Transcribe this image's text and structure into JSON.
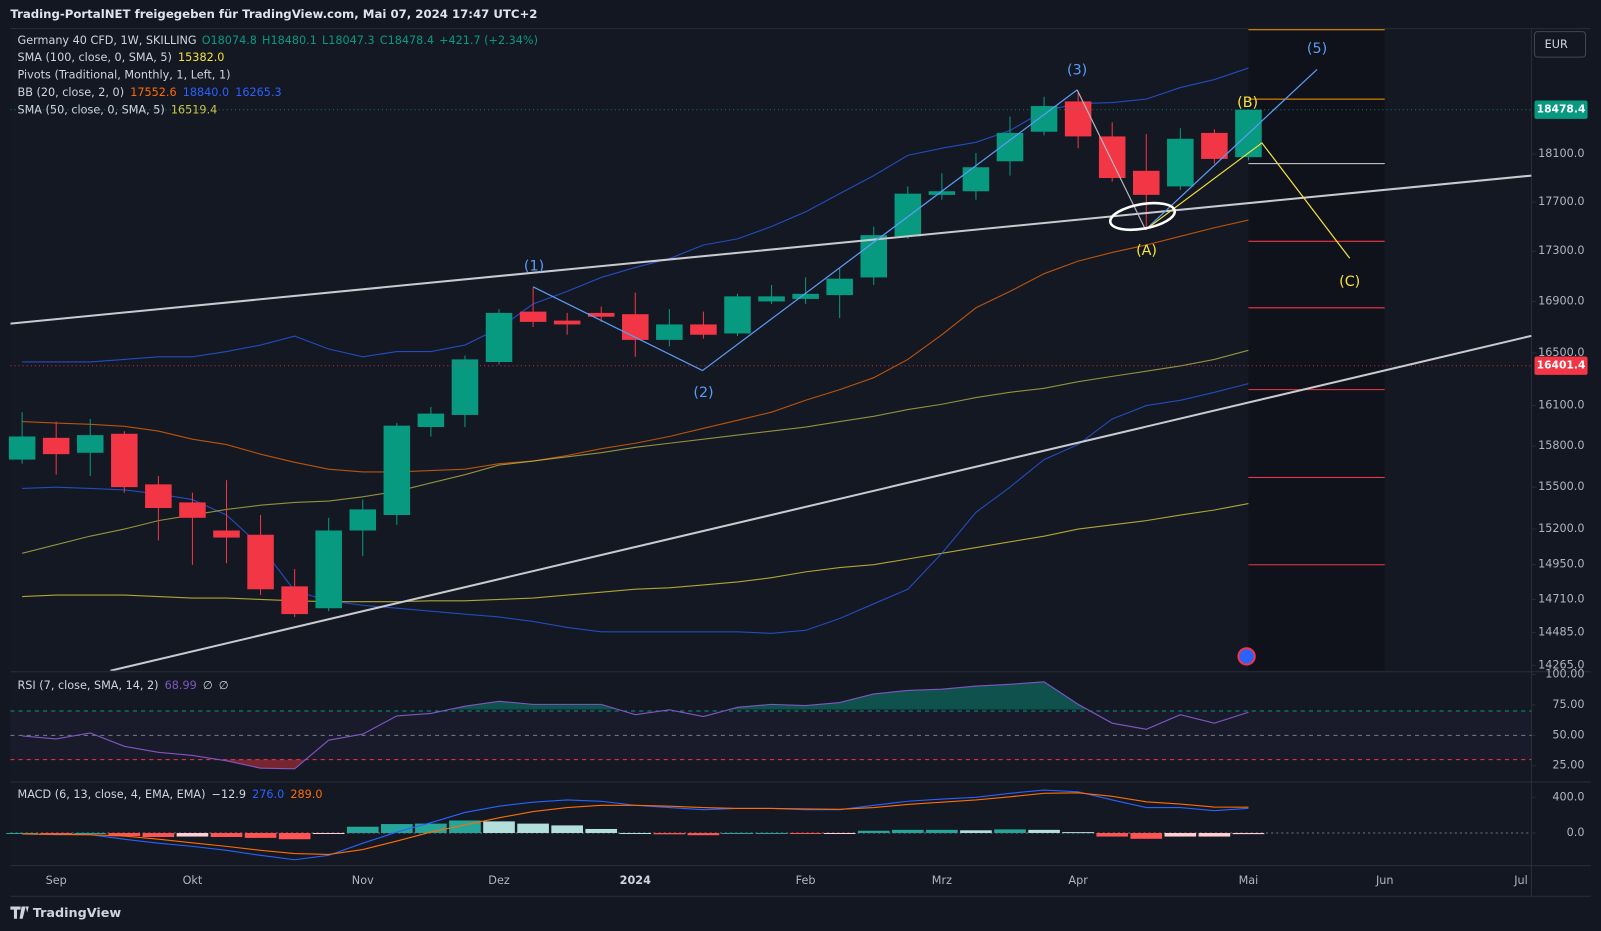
{
  "header": {
    "title": "Trading-PortalNET freigegeben für TradingView.com, Mai 07, 2024 17:47 UTC+2"
  },
  "toolbar": {
    "currency": "EUR"
  },
  "footer": {
    "brand": "TradingView"
  },
  "chart_data": [
    {
      "type": "candlestick",
      "title": "Germany 40 CFD, 1W, SKILLING",
      "legend_values": [
        "O18074.8",
        "H18480.1",
        "L18047.3",
        "C18478.4",
        "+421.7 (+2.34%)"
      ],
      "categories": [
        null,
        "Sep",
        null,
        null,
        null,
        "Okt",
        null,
        null,
        null,
        null,
        "Nov",
        null,
        null,
        null,
        "Dez",
        null,
        null,
        null,
        "2024",
        null,
        null,
        null,
        null,
        "Feb",
        null,
        null,
        null,
        "Mrz",
        null,
        null,
        null,
        "Apr",
        null,
        null,
        null,
        null,
        "Mai",
        null,
        null,
        null,
        "Jun",
        null,
        null,
        null,
        "Jul"
      ],
      "open": [
        15700,
        15860,
        15750,
        15890,
        15520,
        15390,
        15190,
        15160,
        14800,
        14650,
        15190,
        15300,
        15940,
        16030,
        16430,
        16820,
        16750,
        16810,
        16800,
        16600,
        16720,
        16650,
        16900,
        16920,
        16950,
        17090,
        17420,
        17760,
        17790,
        18040,
        18290,
        18550,
        18250,
        17960,
        17830,
        18280,
        18074.8,
        null,
        null,
        null,
        null,
        null,
        null,
        null,
        null
      ],
      "high": [
        16050,
        15980,
        16000,
        15910,
        15580,
        15460,
        15550,
        15300,
        14920,
        15280,
        15410,
        15970,
        16090,
        16480,
        16840,
        17010,
        16810,
        16860,
        16970,
        16840,
        16820,
        16960,
        17030,
        17090,
        17170,
        17500,
        17830,
        17940,
        18110,
        18420,
        18590,
        18630,
        18370,
        18270,
        18320,
        18310,
        18480.1,
        null,
        null,
        null,
        null,
        null,
        null,
        null,
        null
      ],
      "low": [
        15670,
        15590,
        15580,
        15460,
        15120,
        14950,
        14960,
        14740,
        14590,
        14630,
        15010,
        15230,
        15870,
        15940,
        16410,
        16700,
        16640,
        16740,
        16470,
        16550,
        16610,
        16630,
        16880,
        16880,
        16770,
        17030,
        17400,
        17720,
        17720,
        17920,
        18260,
        18150,
        17870,
        17480,
        17800,
        18020,
        18047.3,
        null,
        null,
        null,
        null,
        null,
        null,
        null,
        null
      ],
      "close": [
        15870,
        15740,
        15880,
        15500,
        15350,
        15280,
        15140,
        14780,
        14610,
        15190,
        15340,
        15950,
        16040,
        16450,
        16810,
        16740,
        16720,
        16780,
        16600,
        16720,
        16640,
        16940,
        16940,
        16960,
        17080,
        17430,
        17770,
        17790,
        17990,
        18280,
        18510,
        18250,
        17900,
        17760,
        18230,
        18060,
        18478.4,
        null,
        null,
        null,
        null,
        null,
        null,
        null,
        null
      ],
      "up_color": "#089981",
      "down_color": "#f23645",
      "log_scale": true,
      "ylim": [
        14230,
        19190
      ],
      "yticks": [
        {
          "value": 18100,
          "label": "18100.0"
        },
        {
          "value": 17700,
          "label": "17700.0"
        },
        {
          "value": 17300,
          "label": "17300.0"
        },
        {
          "value": 16900,
          "label": "16900.0"
        },
        {
          "value": 16500,
          "label": "16500.0"
        },
        {
          "value": 16100,
          "label": "16100.0"
        },
        {
          "value": 15800,
          "label": "15800.0"
        },
        {
          "value": 15500,
          "label": "15500.0"
        },
        {
          "value": 15200,
          "label": "15200.0"
        },
        {
          "value": 14950,
          "label": "14950.0"
        },
        {
          "value": 14710,
          "label": "14710.0"
        },
        {
          "value": 14485,
          "label": "14485.0"
        },
        {
          "value": 14265,
          "label": "14265.0"
        }
      ],
      "series": [
        {
          "name": "SMA (100, close, 0, SMA, 5)",
          "color": "#f5e13c",
          "last_label": "15382.0",
          "values": [
            14730,
            14740,
            14740,
            14740,
            14730,
            14720,
            14720,
            14710,
            14700,
            14695,
            14695,
            14695,
            14700,
            14700,
            14710,
            14720,
            14740,
            14760,
            14780,
            14790,
            14810,
            14830,
            14860,
            14900,
            14930,
            14950,
            14990,
            15030,
            15070,
            15110,
            15150,
            15200,
            15230,
            15260,
            15300,
            15336,
            15382,
            null,
            null,
            null,
            null,
            null,
            null,
            null,
            null
          ]
        },
        {
          "name": "Pivots (Traditional, Monthly, 1, Left, 1)",
          "levels": [
            19180,
            18570,
            18020,
            17380,
            16850,
            16220,
            15570,
            14950
          ],
          "colors": [
            "#ff9800",
            "#ff9800",
            "#d1d4dc",
            "#f23645",
            "#f23645",
            "#f23645",
            "#f23645",
            "#f23645"
          ]
        },
        {
          "name": "BB (20, close, 2, 0)",
          "lines": [
            {
              "color": "#ff6d00",
              "last_label": "17552.6",
              "values": [
                15980,
                15970,
                15960,
                15945,
                15910,
                15850,
                15810,
                15740,
                15680,
                15630,
                15610,
                15610,
                15620,
                15630,
                15670,
                15690,
                15730,
                15780,
                15820,
                15870,
                15930,
                15990,
                16050,
                16140,
                16220,
                16310,
                16450,
                16640,
                16850,
                16980,
                17120,
                17220,
                17290,
                17350,
                17420,
                17490,
                17552.6,
                null,
                null,
                null,
                null,
                null,
                null,
                null,
                null
              ]
            },
            {
              "color": "#2962ff",
              "last_label": "18840.0",
              "values": [
                16430,
                16430,
                16430,
                16450,
                16470,
                16470,
                16510,
                16560,
                16630,
                16530,
                16470,
                16510,
                16510,
                16560,
                16690,
                16880,
                16980,
                17090,
                17170,
                17240,
                17350,
                17400,
                17500,
                17620,
                17770,
                17920,
                18090,
                18150,
                18200,
                18300,
                18470,
                18530,
                18540,
                18570,
                18670,
                18740,
                18840,
                null,
                null,
                null,
                null,
                null,
                null,
                null,
                null
              ]
            },
            {
              "color": "#2962ff",
              "last_label": "16265.3",
              "values": [
                15490,
                15500,
                15490,
                15480,
                15450,
                15410,
                15300,
                15080,
                14770,
                14700,
                14670,
                14650,
                14630,
                14610,
                14590,
                14560,
                14520,
                14490,
                14490,
                14490,
                14490,
                14490,
                14480,
                14500,
                14580,
                14680,
                14780,
                15030,
                15320,
                15500,
                15700,
                15810,
                16000,
                16100,
                16140,
                16200,
                16265.3,
                null,
                null,
                null,
                null,
                null,
                null,
                null,
                null
              ]
            }
          ]
        },
        {
          "name": "SMA (50, close, 0, SMA, 5)",
          "color": "#c9c44a",
          "last_label": "16519.4",
          "values": [
            15030,
            15090,
            15150,
            15200,
            15260,
            15300,
            15340,
            15370,
            15390,
            15400,
            15430,
            15470,
            15530,
            15590,
            15660,
            15690,
            15720,
            15750,
            15790,
            15820,
            15850,
            15880,
            15910,
            15940,
            15980,
            16020,
            16070,
            16110,
            16160,
            16200,
            16230,
            16280,
            16320,
            16360,
            16400,
            16450,
            16519.4,
            null,
            null,
            null,
            null,
            null,
            null,
            null,
            null
          ]
        }
      ],
      "price_lines": [
        {
          "value": 18478.4,
          "color": "#089981"
        },
        {
          "value": 16401.4,
          "color": "#f23645"
        }
      ],
      "annotations": [
        {
          "text": "(1)",
          "color": "#5b9cf6"
        },
        {
          "text": "(2)",
          "color": "#5b9cf6"
        },
        {
          "text": "(3)",
          "color": "#5b9cf6"
        },
        {
          "text": "(5)",
          "color": "#5b9cf6"
        },
        {
          "text": "(A)",
          "color": "#f5e13c"
        },
        {
          "text": "(B)",
          "color": "#f5e13c"
        },
        {
          "text": "(C)",
          "color": "#f5e13c"
        }
      ]
    },
    {
      "type": "line",
      "title": "RSI (7, close, SMA, 14, 2)",
      "value_label": "68.99",
      "ma_labels": [
        "∅",
        "∅"
      ],
      "color": "#7e57c2",
      "values": [
        49.5,
        47,
        52,
        41,
        36,
        33.5,
        29,
        23,
        22.5,
        46,
        51,
        66,
        68,
        74,
        78,
        75.5,
        75.5,
        75.5,
        67,
        71,
        65.5,
        73,
        75.5,
        74.5,
        77,
        84,
        87,
        88,
        90.5,
        92,
        94,
        75.5,
        60,
        55,
        67,
        60,
        68.99
      ],
      "ylim": [
        12.5,
        101.5
      ],
      "yticks": [
        {
          "value": 100,
          "label": "100.00"
        },
        {
          "value": 75,
          "label": "75.00"
        },
        {
          "value": 50,
          "label": "50.00"
        },
        {
          "value": 25,
          "label": "25.00"
        }
      ],
      "bands": [
        {
          "value": 70,
          "color": "#089981"
        },
        {
          "value": 50,
          "color": "#787b86"
        },
        {
          "value": 30,
          "color": "#f23645"
        }
      ]
    },
    {
      "type": "macd",
      "title": "MACD (6, 13, close, 4, EMA, EMA)",
      "value_labels": [
        "−12.9",
        "276.0",
        "289.0"
      ],
      "histogram": {
        "colors": [
          "#26a69a",
          "#b2dfdb",
          "#ff5252",
          "#ffcdd2"
        ],
        "values": [
          0,
          -5,
          0,
          -35,
          -45,
          -40,
          -45,
          -55,
          -70,
          -10,
          70,
          100,
          105,
          140,
          130,
          105,
          85,
          45,
          0,
          -15,
          -25,
          0,
          0,
          -10,
          -5,
          25,
          35,
          35,
          30,
          40,
          35,
          10,
          -40,
          -65,
          -40,
          -40,
          -12.9
        ]
      },
      "series": [
        {
          "color": "#2962ff",
          "values": [
            -10,
            -20,
            -20,
            -70,
            -115,
            -150,
            -195,
            -250,
            -300,
            -250,
            -115,
            10,
            115,
            230,
            300,
            345,
            370,
            355,
            310,
            285,
            260,
            275,
            275,
            260,
            260,
            310,
            355,
            380,
            400,
            445,
            480,
            460,
            370,
            285,
            285,
            250,
            276
          ]
        },
        {
          "color": "#ff6d00",
          "values": [
            -10,
            -15,
            -20,
            -35,
            -70,
            -110,
            -150,
            -195,
            -230,
            -240,
            -185,
            -90,
            10,
            90,
            170,
            240,
            285,
            310,
            310,
            300,
            285,
            275,
            275,
            270,
            265,
            285,
            320,
            345,
            370,
            405,
            445,
            450,
            410,
            350,
            325,
            290,
            289
          ]
        }
      ],
      "ylim": [
        -366,
        560
      ],
      "yticks": [
        {
          "value": 400,
          "label": "400.0"
        },
        {
          "value": 0,
          "label": "0.0"
        }
      ]
    }
  ]
}
